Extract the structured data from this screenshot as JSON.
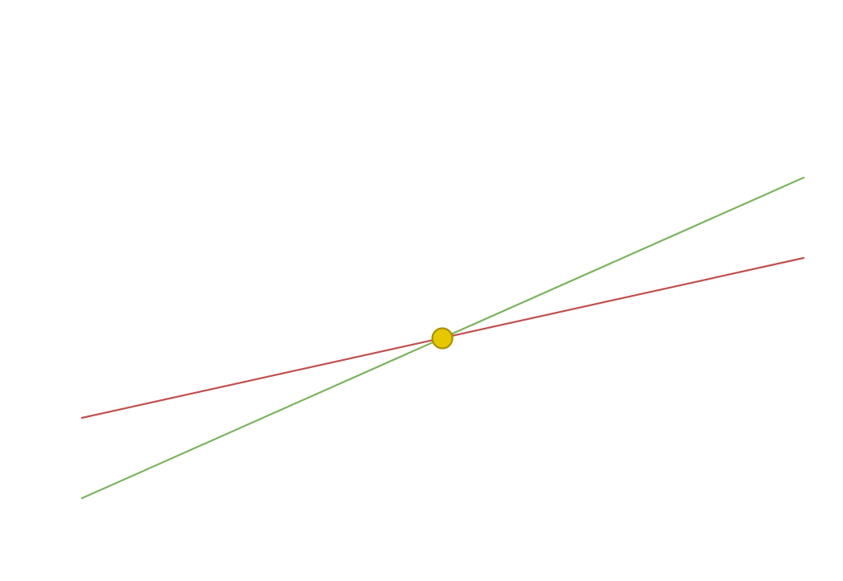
{
  "diagram": {
    "lines": [
      {
        "name": "red-line",
        "color": "#c0504d"
      },
      {
        "name": "green-line",
        "color": "#7cb360"
      }
    ],
    "intersection_point": {
      "fill": "#e6c800",
      "stroke": "#a89200"
    }
  }
}
